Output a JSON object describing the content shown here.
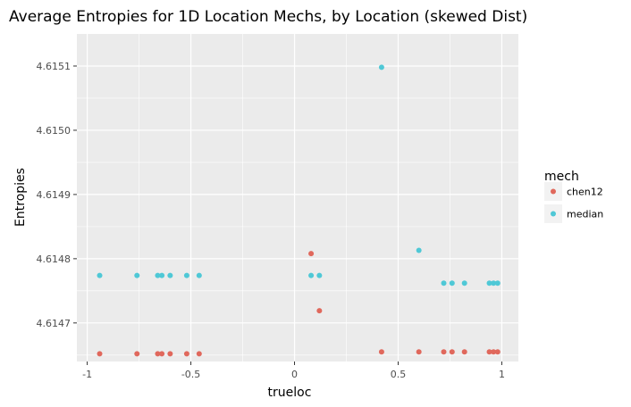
{
  "chart_data": {
    "type": "scatter",
    "title": "Average Entropies for 1D Location Mechs, by Location (skewed Dist)",
    "xlabel": "trueloc",
    "ylabel": "Entropies",
    "xlim": [
      -1.05,
      1.08
    ],
    "ylim": [
      4.61464,
      4.61515
    ],
    "x_ticks": [
      -1,
      -0.5,
      0,
      0.5,
      1
    ],
    "x_tick_labels": [
      "-1",
      "-0.5",
      "0",
      "0.5",
      "1"
    ],
    "y_ticks": [
      4.6147,
      4.6148,
      4.6149,
      4.615,
      4.6151
    ],
    "y_tick_labels": [
      "4.6147",
      "4.6148",
      "4.6149",
      "4.6150",
      "4.6151"
    ],
    "grid": true,
    "legend_title": "mech",
    "legend_position": "right",
    "series": [
      {
        "name": "chen12",
        "color": "#e0685c",
        "points": [
          {
            "x": -0.94,
            "y": 4.614652
          },
          {
            "x": -0.76,
            "y": 4.614652
          },
          {
            "x": -0.66,
            "y": 4.614652
          },
          {
            "x": -0.64,
            "y": 4.614652
          },
          {
            "x": -0.6,
            "y": 4.614652
          },
          {
            "x": -0.52,
            "y": 4.614652
          },
          {
            "x": -0.46,
            "y": 4.614652
          },
          {
            "x": 0.08,
            "y": 4.614808
          },
          {
            "x": 0.12,
            "y": 4.614719
          },
          {
            "x": 0.42,
            "y": 4.614655
          },
          {
            "x": 0.6,
            "y": 4.614655
          },
          {
            "x": 0.72,
            "y": 4.614655
          },
          {
            "x": 0.76,
            "y": 4.614655
          },
          {
            "x": 0.82,
            "y": 4.614655
          },
          {
            "x": 0.94,
            "y": 4.614655
          },
          {
            "x": 0.96,
            "y": 4.614655
          },
          {
            "x": 0.98,
            "y": 4.614655
          }
        ]
      },
      {
        "name": "median",
        "color": "#4fc8d6",
        "points": [
          {
            "x": -0.94,
            "y": 4.614774
          },
          {
            "x": -0.76,
            "y": 4.614774
          },
          {
            "x": -0.66,
            "y": 4.614774
          },
          {
            "x": -0.64,
            "y": 4.614774
          },
          {
            "x": -0.6,
            "y": 4.614774
          },
          {
            "x": -0.52,
            "y": 4.614774
          },
          {
            "x": -0.46,
            "y": 4.614774
          },
          {
            "x": 0.08,
            "y": 4.614774
          },
          {
            "x": 0.12,
            "y": 4.614774
          },
          {
            "x": 0.42,
            "y": 4.615098
          },
          {
            "x": 0.6,
            "y": 4.614813
          },
          {
            "x": 0.72,
            "y": 4.614762
          },
          {
            "x": 0.76,
            "y": 4.614762
          },
          {
            "x": 0.82,
            "y": 4.614762
          },
          {
            "x": 0.94,
            "y": 4.614762
          },
          {
            "x": 0.96,
            "y": 4.614762
          },
          {
            "x": 0.98,
            "y": 4.614762
          }
        ]
      }
    ],
    "panel_color": "#ebebeb",
    "grid_color": "#ffffff"
  }
}
